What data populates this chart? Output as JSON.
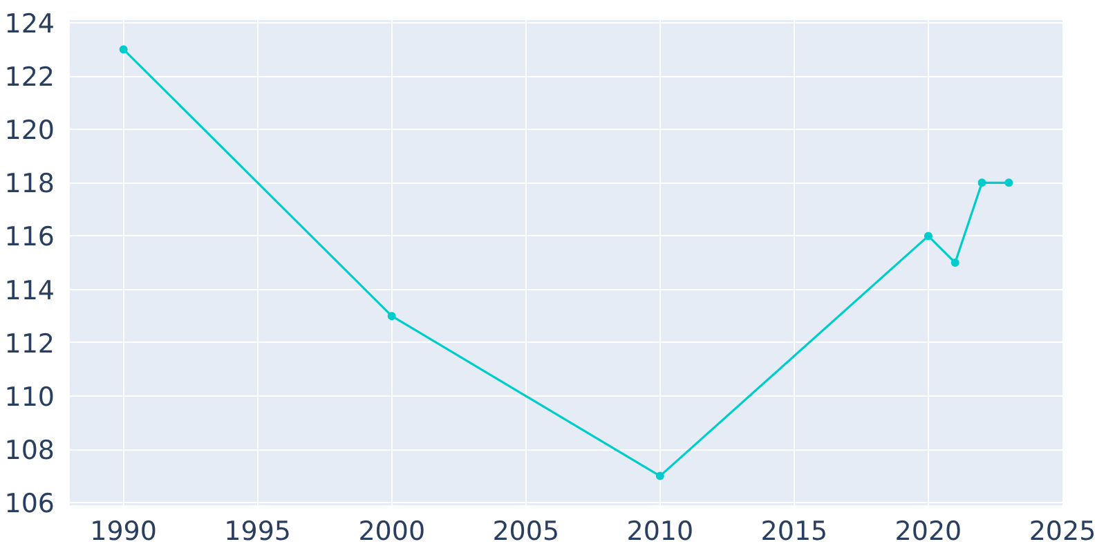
{
  "chart_data": {
    "type": "line",
    "x": [
      1990,
      2000,
      2010,
      2020,
      2021,
      2022,
      2023
    ],
    "series": [
      {
        "color": "#00cccc",
        "values": [
          123,
          113,
          107,
          116,
          115,
          118,
          118
        ]
      }
    ],
    "xlim": [
      1988,
      2025
    ],
    "ylim": [
      105.9,
      124.1
    ],
    "xticks": [
      1990,
      1995,
      2000,
      2005,
      2010,
      2015,
      2020,
      2025
    ],
    "yticks": [
      106,
      108,
      110,
      112,
      114,
      116,
      118,
      120,
      122,
      124
    ],
    "grid": true,
    "marker": "circle",
    "line_style": "solid"
  }
}
